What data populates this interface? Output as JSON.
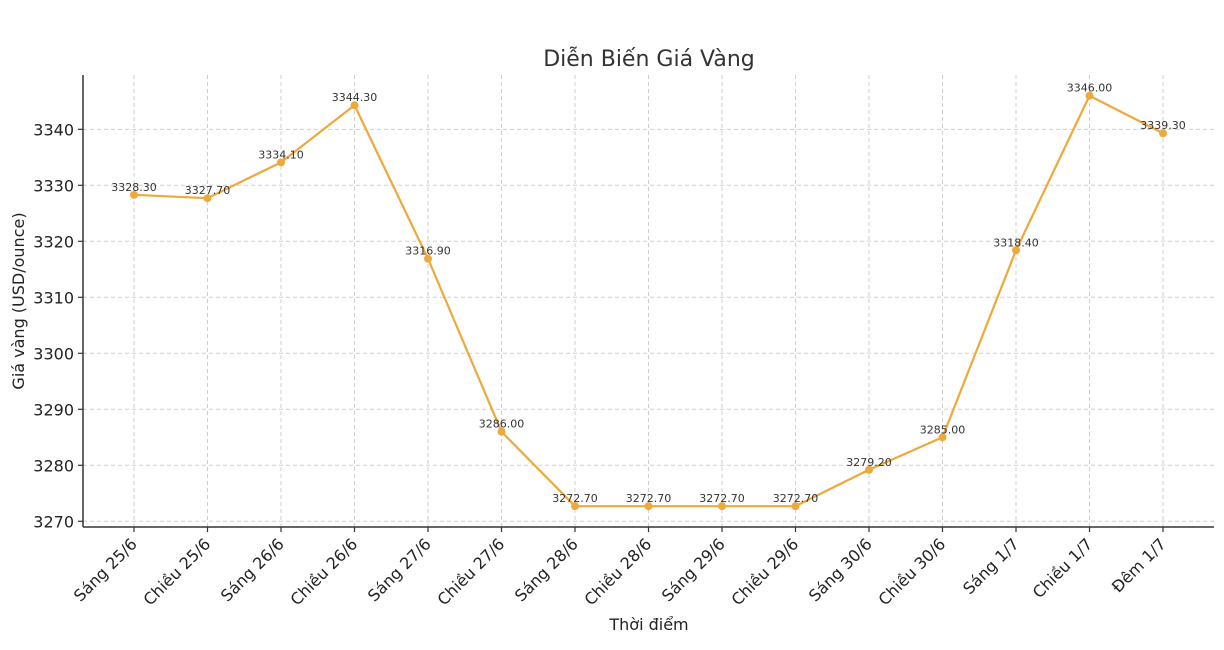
{
  "chart_data": {
    "type": "line",
    "title": "Diễn Biến Giá Vàng",
    "xlabel": "Thời điểm",
    "ylabel": "Giá vàng (USD/ounce)",
    "categories": [
      "Sáng 25/6",
      "Chiều 25/6",
      "Sáng 26/6",
      "Chiều 26/6",
      "Sáng 27/6",
      "Chiều 27/6",
      "Sáng 28/6",
      "Chiều 28/6",
      "Sáng 29/6",
      "Chiều 29/6",
      "Sáng 30/6",
      "Chiều 30/6",
      "Sáng 1/7",
      "Chiều 1/7",
      "Đêm 1/7"
    ],
    "values": [
      3328.3,
      3327.7,
      3334.1,
      3344.3,
      3316.9,
      3286.0,
      3272.7,
      3272.7,
      3272.7,
      3272.7,
      3279.2,
      3285.0,
      3318.4,
      3346.0,
      3339.3
    ],
    "data_labels": [
      "3328.30",
      "3327.70",
      "3334.10",
      "3344.30",
      "3316.90",
      "3286.00",
      "3272.70",
      "3272.70",
      "3272.70",
      "3272.70",
      "3279.20",
      "3285.00",
      "3318.40",
      "3346.00",
      "3339.30"
    ],
    "yticks": [
      3270,
      3280,
      3290,
      3300,
      3310,
      3320,
      3330,
      3340
    ],
    "ylim": [
      3268.98,
      3349.7
    ],
    "grid": true,
    "legend": "none",
    "colors": {
      "line": "#EDA93B",
      "marker": "#EDA93B"
    }
  }
}
